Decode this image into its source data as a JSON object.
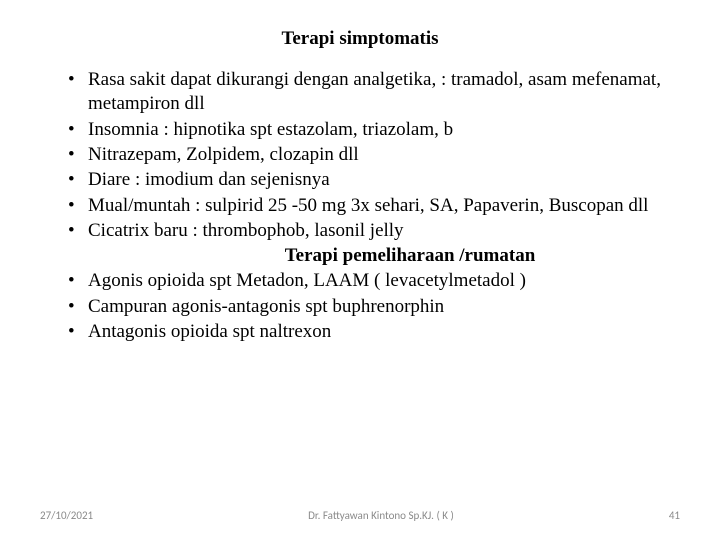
{
  "title1": "Terapi simptomatis",
  "title2": "Terapi pemeliharaan /rumatan",
  "section1": [
    "Rasa sakit dapat dikurangi dengan analgetika, : tramadol, asam mefenamat, metampiron dll",
    "Insomnia : hipnotika spt estazolam, triazolam, b",
    "Nitrazepam, Zolpidem, clozapin dll",
    "Diare : imodium dan sejenisnya",
    "Mual/muntah : sulpirid 25 -50 mg 3x sehari, SA, Papaverin, Buscopan dll",
    "Cicatrix baru : thrombophob, lasonil jelly"
  ],
  "section2": [
    "Agonis opioida spt Metadon, LAAM ( levacetylmetadol )",
    "Campuran agonis-antagonis spt buphrenorphin",
    "Antagonis opioida spt naltrexon"
  ],
  "footer": {
    "date": "27/10/2021",
    "author": "Dr. Fattyawan Kintono Sp.KJ. ( K )",
    "page": "41"
  }
}
